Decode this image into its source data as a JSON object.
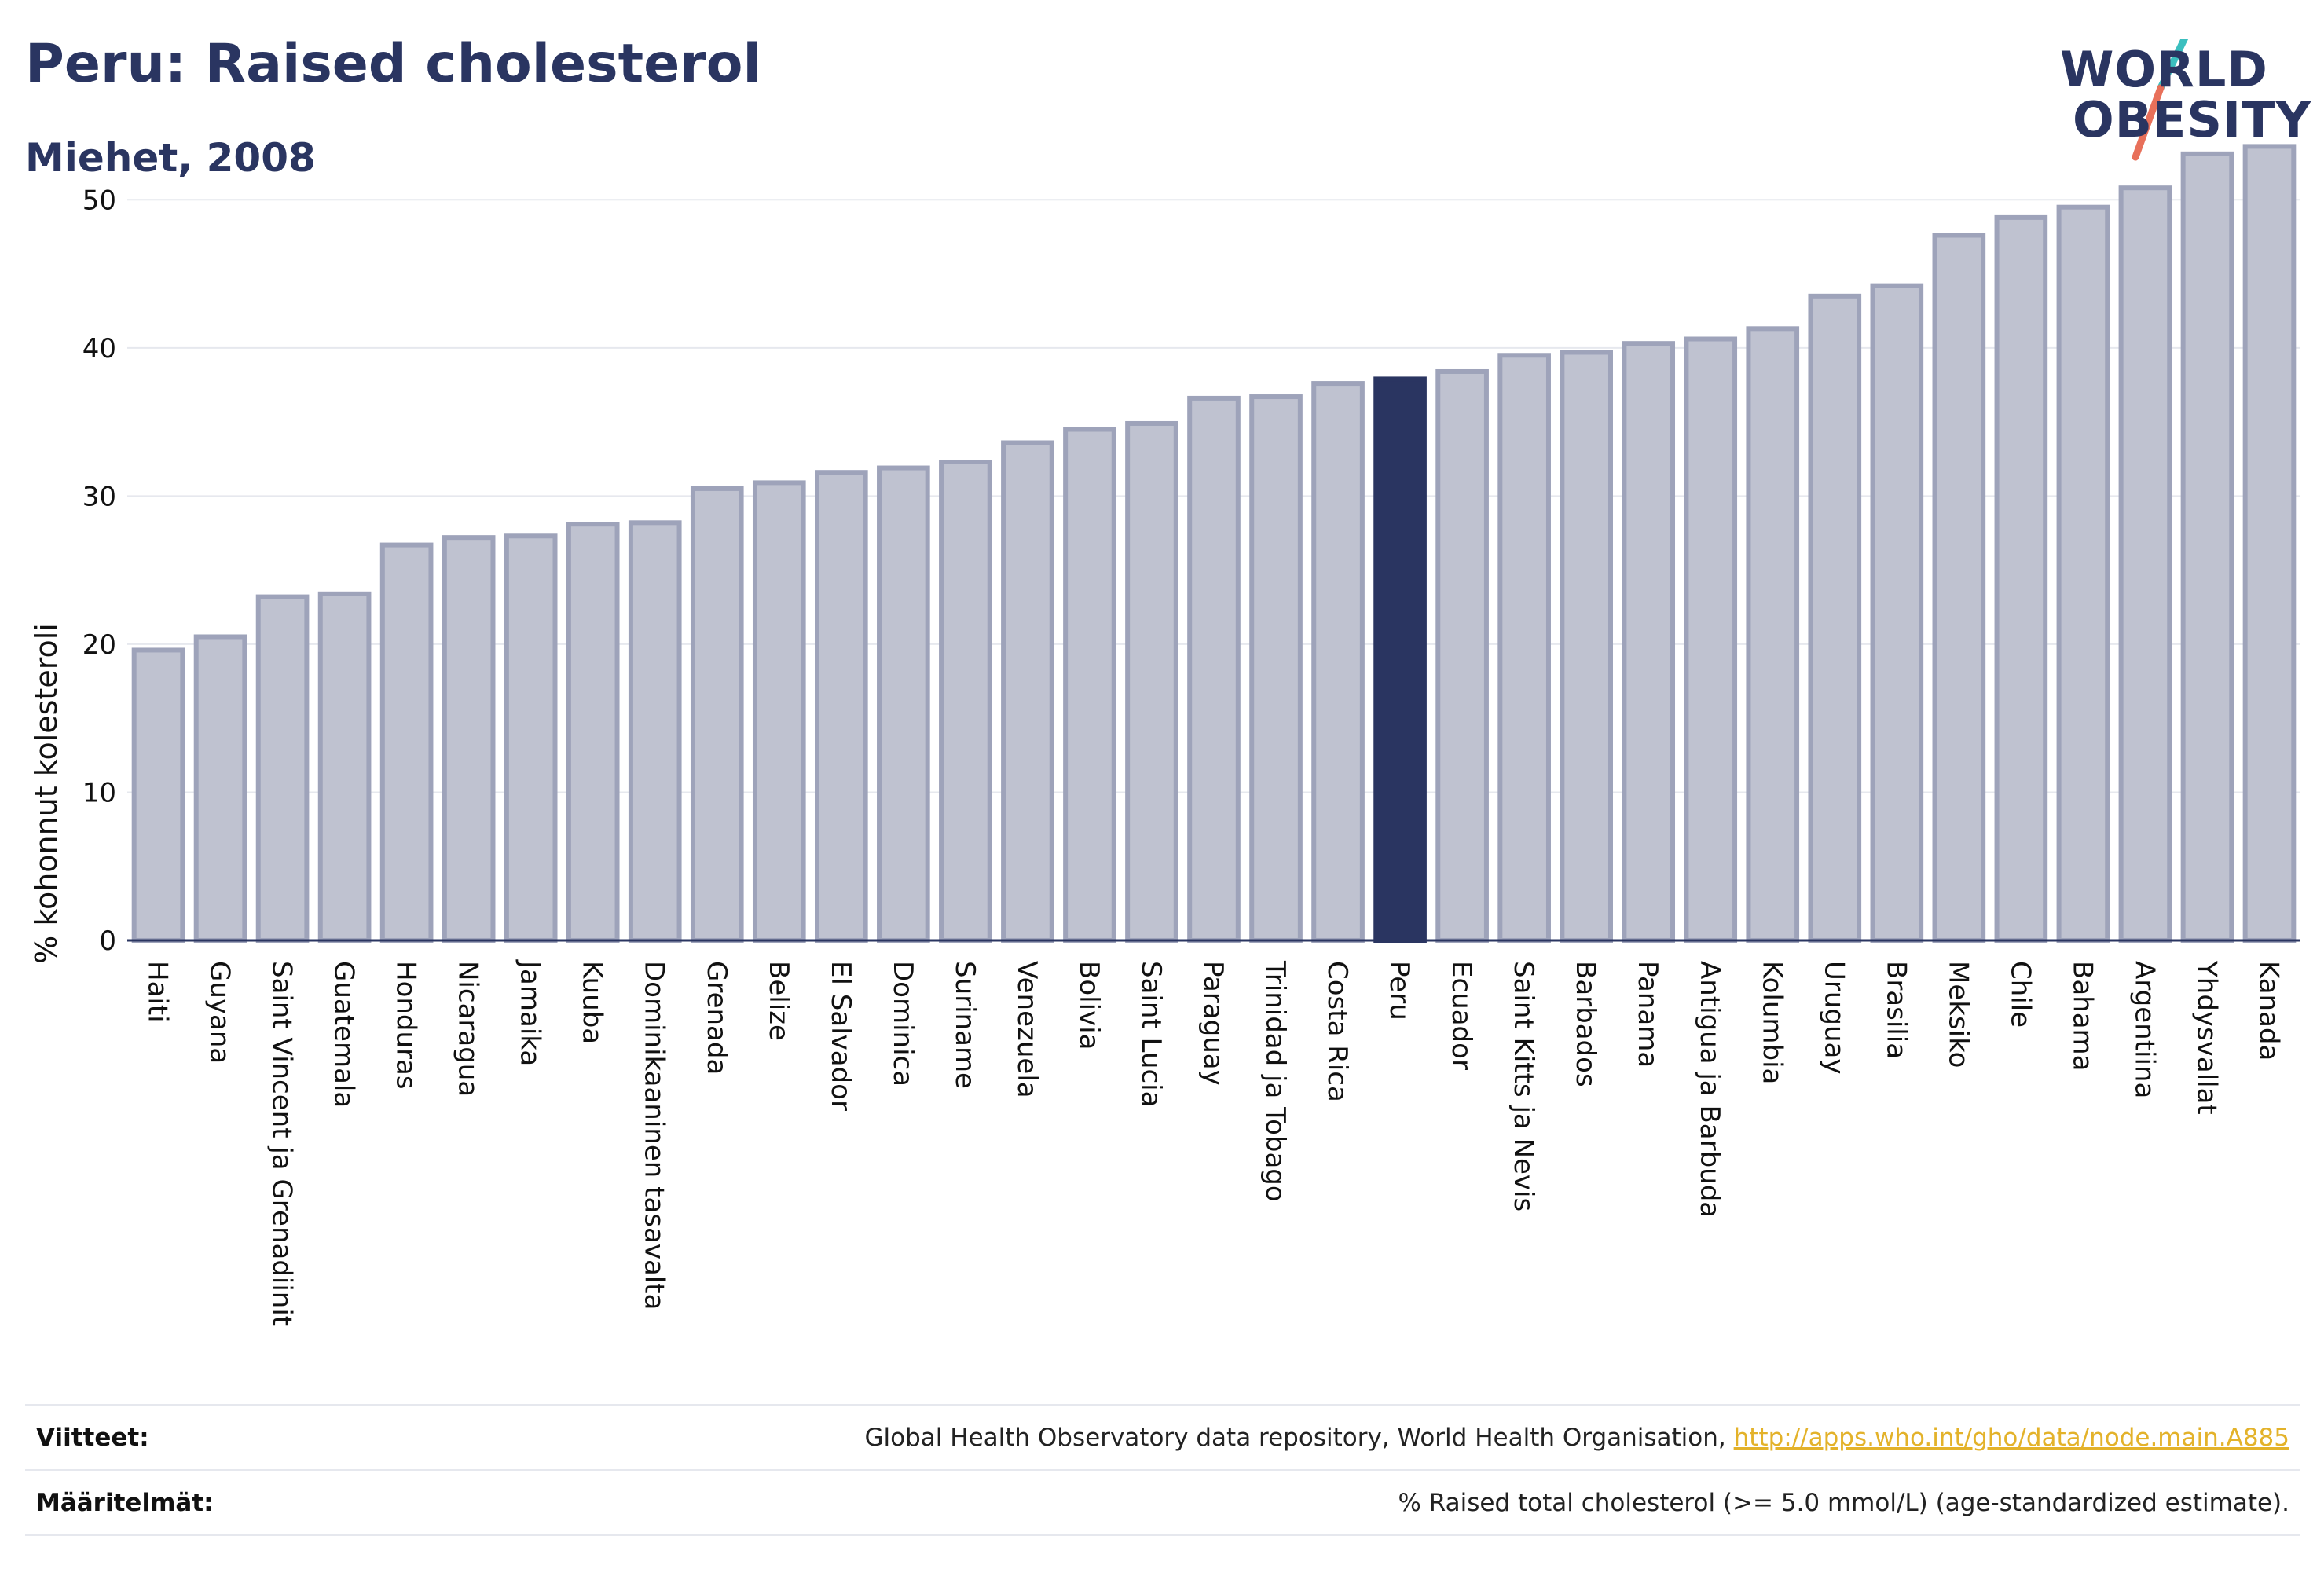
{
  "header": {
    "title": "Peru: Raised cholesterol",
    "subtitle": "Miehet, 2008"
  },
  "logo": {
    "line1": "WORLD",
    "line2": "OBESITY",
    "icon": "world-obesity-slash-logo",
    "slash_colors": [
      "#3bbfbf",
      "#e8705a"
    ]
  },
  "colors": {
    "bar": "#bfc2d0",
    "bar_border": "#9ea3ba",
    "highlight": "#2a3561",
    "grid": "#e6e8ee",
    "axis": "#2a3561"
  },
  "chart_data": {
    "type": "bar",
    "ylabel": "% kohonnut kolesteroli",
    "ylim": [
      0,
      55
    ],
    "yticks": [
      0,
      10,
      20,
      30,
      40,
      50
    ],
    "grid": true,
    "highlight": "Peru",
    "categories": [
      "Haiti",
      "Guyana",
      "Saint Vincent ja Grenadiinit",
      "Guatemala",
      "Honduras",
      "Nicaragua",
      "Jamaika",
      "Kuuba",
      "Dominikaaninen tasavalta",
      "Grenada",
      "Belize",
      "El Salvador",
      "Dominica",
      "Suriname",
      "Venezuela",
      "Bolivia",
      "Saint Lucia",
      "Paraguay",
      "Trinidad ja Tobago",
      "Costa Rica",
      "Peru",
      "Ecuador",
      "Saint Kitts ja Nevis",
      "Barbados",
      "Panama",
      "Antigua ja Barbuda",
      "Kolumbia",
      "Uruguay",
      "Brasilia",
      "Meksiko",
      "Chile",
      "Bahama",
      "Argentiina",
      "Yhdysvallat",
      "Kanada"
    ],
    "values": [
      19.6,
      20.5,
      23.2,
      23.4,
      26.7,
      27.2,
      27.3,
      28.1,
      28.2,
      30.5,
      30.9,
      31.6,
      31.9,
      32.3,
      33.6,
      34.5,
      34.9,
      36.6,
      36.7,
      37.6,
      37.9,
      38.4,
      39.5,
      39.7,
      40.3,
      40.6,
      41.3,
      43.5,
      44.2,
      47.6,
      48.8,
      49.5,
      50.8,
      53.1,
      53.6
    ]
  },
  "footer": {
    "sources_label": "Viitteet:",
    "sources_text": "Global Health Observatory data repository, World Health Organisation, ",
    "sources_link": "http://apps.who.int/gho/data/node.main.A885",
    "definitions_label": "Määritelmät:",
    "definitions_text": "% Raised total cholesterol (>= 5.0 mmol/L) (age-standardized estimate)."
  }
}
